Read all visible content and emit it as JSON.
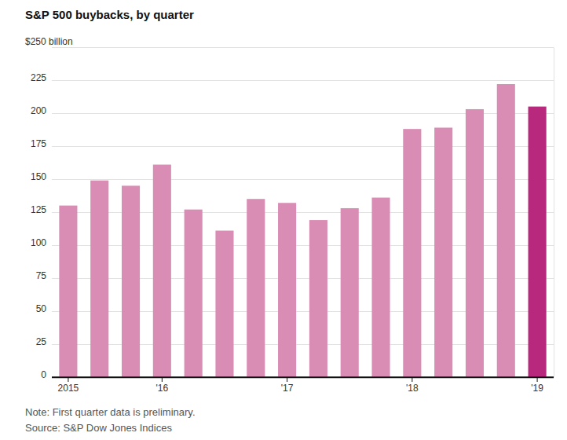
{
  "chart_data": {
    "type": "bar",
    "title": "S&P 500 buybacks, by quarter",
    "categories": [
      "2015",
      null,
      null,
      "'16",
      null,
      null,
      null,
      "'17",
      null,
      null,
      null,
      "'18",
      null,
      null,
      null,
      "'19"
    ],
    "values": [
      130,
      149,
      145,
      161,
      127,
      111,
      135,
      132,
      119,
      128,
      136,
      188,
      189,
      203,
      222,
      205
    ],
    "colors": [
      "#d98db4",
      "#d98db4",
      "#d98db4",
      "#d98db4",
      "#d98db4",
      "#d98db4",
      "#d98db4",
      "#d98db4",
      "#d98db4",
      "#d98db4",
      "#d98db4",
      "#d98db4",
      "#d98db4",
      "#d98db4",
      "#d98db4",
      "#b8287c"
    ],
    "ylim": [
      0,
      250
    ],
    "yticks": [
      0,
      25,
      50,
      75,
      100,
      125,
      150,
      175,
      200,
      225,
      {
        "value": 250,
        "label": "$250 billion"
      }
    ],
    "grid": true,
    "note": "Note: First quarter data is preliminary.",
    "source": "Source: S&P Dow Jones Indices"
  }
}
